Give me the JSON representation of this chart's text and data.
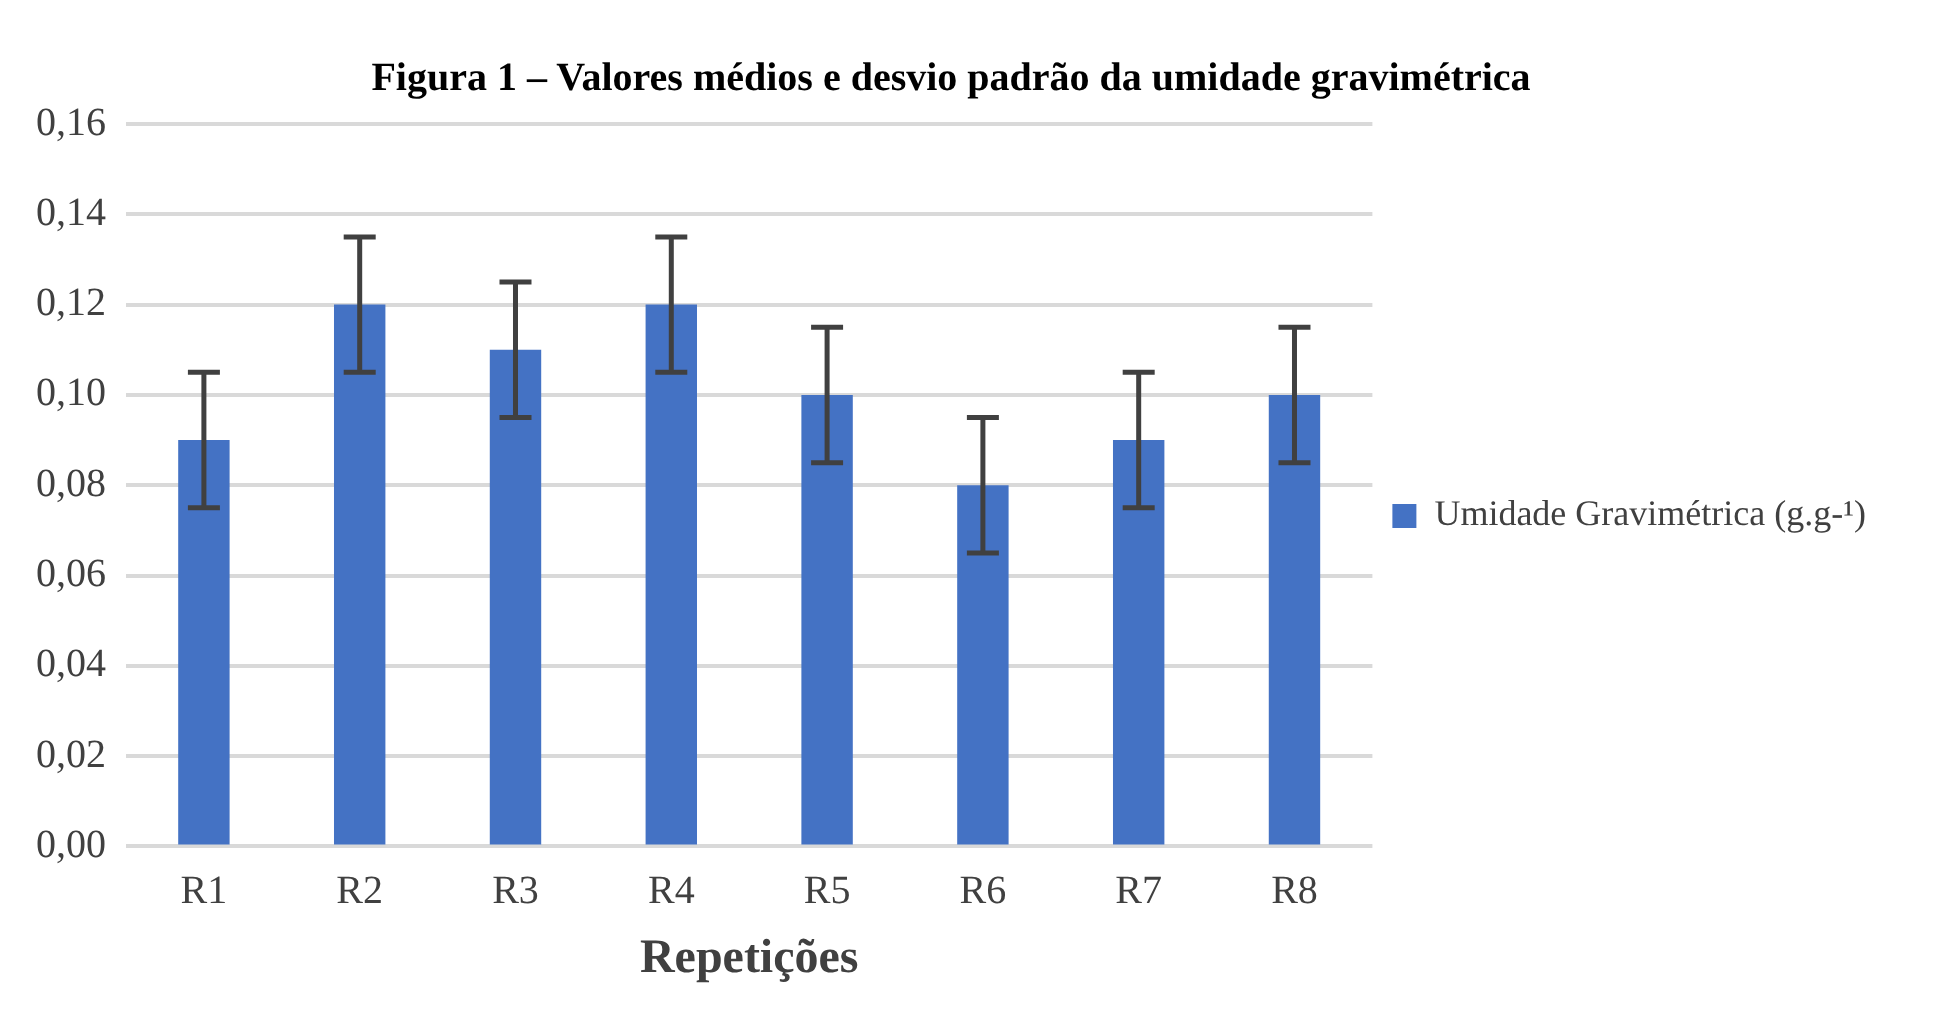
{
  "chart_data": {
    "type": "bar",
    "title": "Figura 1 – Valores médios e desvio padrão da umidade gravimétrica",
    "xlabel": "Repetições",
    "categories": [
      "R1",
      "R2",
      "R3",
      "R4",
      "R5",
      "R6",
      "R7",
      "R8"
    ],
    "series": [
      {
        "name": "Umidade Gravimétrica (g.g-¹)",
        "color": "#4472c4",
        "values": [
          0.09,
          0.12,
          0.11,
          0.12,
          0.1,
          0.08,
          0.09,
          0.1
        ],
        "errors": [
          0.015,
          0.015,
          0.015,
          0.015,
          0.015,
          0.015,
          0.015,
          0.015
        ]
      }
    ],
    "ylim": [
      0,
      0.16
    ],
    "yticks": [
      {
        "value": 0,
        "label": "0,00"
      },
      {
        "value": 0.02,
        "label": "0,02"
      },
      {
        "value": 0.04,
        "label": "0,04"
      },
      {
        "value": 0.06,
        "label": "0,06"
      },
      {
        "value": 0.08,
        "label": "0,08"
      },
      {
        "value": 0.1,
        "label": "0,10"
      },
      {
        "value": 0.12,
        "label": "0,12"
      },
      {
        "value": 0.14,
        "label": "0,14"
      },
      {
        "value": 0.16,
        "label": "0,16"
      }
    ],
    "grid": "y",
    "legend": "right"
  }
}
